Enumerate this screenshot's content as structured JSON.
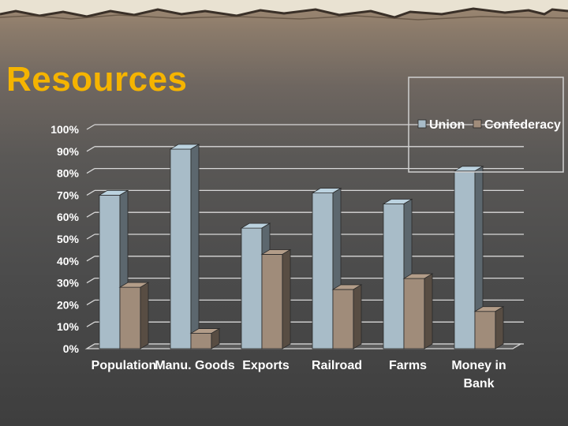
{
  "slide": {
    "title": "Resources"
  },
  "colors": {
    "union": "#a8bcc8",
    "confederacy": "#a08c7a",
    "title": "#f5b400",
    "text": "#ffffff",
    "gridline": "#d8d8d8"
  },
  "chart_data": {
    "type": "bar",
    "title": "",
    "xlabel": "",
    "ylabel": "",
    "ylim": [
      0,
      100
    ],
    "yticks": [
      0,
      10,
      20,
      30,
      40,
      50,
      60,
      70,
      80,
      90,
      100
    ],
    "tick_suffix": "%",
    "style": "3d",
    "grid": true,
    "legend": {
      "position": "top-right"
    },
    "categories": [
      "Population",
      "Manu. Goods",
      "Exports",
      "Railroad",
      "Farms",
      "Money in Bank"
    ],
    "series": [
      {
        "name": "Union",
        "values": [
          70,
          91,
          55,
          71,
          66,
          81
        ]
      },
      {
        "name": "Confederacy",
        "values": [
          28,
          7,
          43,
          27,
          32,
          17
        ]
      }
    ]
  }
}
